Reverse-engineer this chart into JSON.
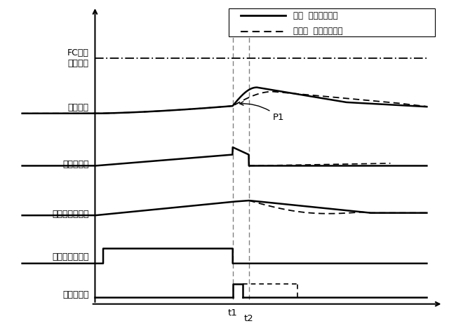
{
  "background_color": "#ffffff",
  "t1": 0.52,
  "t2": 0.56,
  "legend_label_solid": "従来  触媒推定温度",
  "legend_label_dashed": "本発明  触媒推定温度",
  "y_labels": [
    "FC禁止\n温度閾値",
    "触媒温度",
    "燃料噴射量",
    "エンジン回転数",
    "スロットル開度",
    "燃料カット"
  ],
  "annotation_text": "P1",
  "xlim": [
    -0.05,
    1.05
  ],
  "ylim": [
    -0.5,
    6.8
  ]
}
